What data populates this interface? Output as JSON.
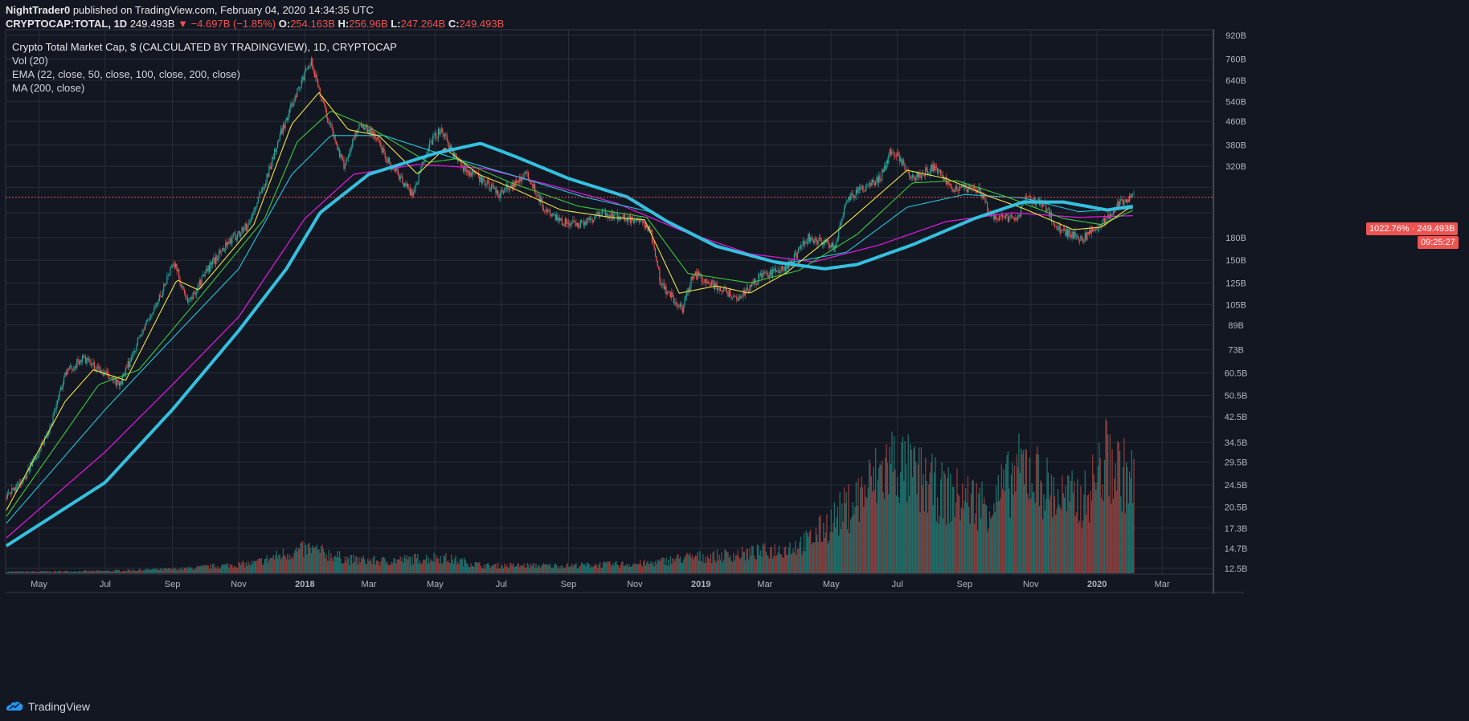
{
  "header": {
    "publisher": "NightTrader0",
    "published_text": "published on TradingView.com, February 04, 2020 14:34:35 UTC",
    "symbol": "CRYPTOCAP:TOTAL, 1D",
    "last": "249.493B",
    "change": "▼ −4.697B (−1.85%)",
    "o_label": "O:",
    "o": "254.163B",
    "h_label": "H:",
    "h": "256.96B",
    "l_label": "L:",
    "l": "247.264B",
    "c_label": "C:",
    "c": "249.493B"
  },
  "legend": {
    "title": "Crypto Total Market Cap, $ (CALCULATED BY TRADINGVIEW), 1D, CRYPTOCAP",
    "vol": "Vol (20)",
    "ema": "EMA (22, close, 50, close, 100, close, 200, close)",
    "ma": "MA (200, close)"
  },
  "tags": {
    "percent": "1022.76%",
    "price": "249.493B",
    "countdown": "09:25:27"
  },
  "footer": {
    "brand": "TradingView"
  },
  "colors": {
    "background": "#131722",
    "grid": "#2a2e39",
    "up": "#26a69a",
    "down": "#ef5350",
    "ema22": "#f0e442",
    "ema50": "#3ec93e",
    "ema100": "#26c6da",
    "ema200": "#d81bd8",
    "ma200": "#35c0e0"
  },
  "chart_data": {
    "type": "line",
    "y_scale": "log",
    "y_ticks": [
      "920B",
      "760B",
      "640B",
      "540B",
      "460B",
      "380B",
      "320B",
      "",
      "",
      "180B",
      "150B",
      "125B",
      "105B",
      "89B",
      "73B",
      "60.5B",
      "50.5B",
      "42.5B",
      "34.5B",
      "29.5B",
      "24.5B",
      "20.5B",
      "17.3B",
      "14.7B",
      "12.5B"
    ],
    "y_tick_values": [
      920,
      760,
      640,
      540,
      460,
      380,
      320,
      270,
      220,
      180,
      150,
      125,
      105,
      89,
      73,
      60.5,
      50.5,
      42.5,
      34.5,
      29.5,
      24.5,
      20.5,
      17.3,
      14.7,
      12.5
    ],
    "x_ticks": [
      "May",
      "Jul",
      "Sep",
      "Nov",
      "2018",
      "Mar",
      "May",
      "Jul",
      "Sep",
      "Nov",
      "2019",
      "Mar",
      "May",
      "Jul",
      "Sep",
      "Nov",
      "2020",
      "Mar"
    ],
    "x_tick_dates": [
      "2017-05-01",
      "2017-07-01",
      "2017-09-01",
      "2017-11-01",
      "2018-01-01",
      "2018-03-01",
      "2018-05-01",
      "2018-07-01",
      "2018-09-01",
      "2018-11-01",
      "2019-01-01",
      "2019-03-01",
      "2019-05-01",
      "2019-07-01",
      "2019-09-01",
      "2019-11-01",
      "2020-01-01",
      "2020-03-01"
    ],
    "price_points": [
      [
        "2017-04-01",
        22
      ],
      [
        "2017-04-20",
        27
      ],
      [
        "2017-05-10",
        38
      ],
      [
        "2017-05-25",
        60
      ],
      [
        "2017-06-10",
        68
      ],
      [
        "2017-06-25",
        62
      ],
      [
        "2017-07-15",
        55
      ],
      [
        "2017-08-01",
        80
      ],
      [
        "2017-08-20",
        110
      ],
      [
        "2017-09-02",
        150
      ],
      [
        "2017-09-15",
        105
      ],
      [
        "2017-10-01",
        135
      ],
      [
        "2017-10-20",
        170
      ],
      [
        "2017-11-10",
        200
      ],
      [
        "2017-11-25",
        280
      ],
      [
        "2017-12-10",
        420
      ],
      [
        "2017-12-25",
        590
      ],
      [
        "2018-01-07",
        740
      ],
      [
        "2018-01-20",
        500
      ],
      [
        "2018-02-06",
        320
      ],
      [
        "2018-02-20",
        450
      ],
      [
        "2018-03-05",
        420
      ],
      [
        "2018-03-20",
        330
      ],
      [
        "2018-04-10",
        255
      ],
      [
        "2018-04-25",
        380
      ],
      [
        "2018-05-06",
        430
      ],
      [
        "2018-05-25",
        320
      ],
      [
        "2018-06-12",
        290
      ],
      [
        "2018-06-28",
        255
      ],
      [
        "2018-07-25",
        300
      ],
      [
        "2018-08-12",
        220
      ],
      [
        "2018-08-25",
        205
      ],
      [
        "2018-09-10",
        200
      ],
      [
        "2018-10-01",
        218
      ],
      [
        "2018-10-25",
        210
      ],
      [
        "2018-11-15",
        195
      ],
      [
        "2018-11-25",
        125
      ],
      [
        "2018-12-15",
        100
      ],
      [
        "2018-12-25",
        135
      ],
      [
        "2019-01-10",
        125
      ],
      [
        "2019-02-05",
        110
      ],
      [
        "2019-02-25",
        132
      ],
      [
        "2019-03-20",
        140
      ],
      [
        "2019-04-10",
        180
      ],
      [
        "2019-05-05",
        168
      ],
      [
        "2019-05-15",
        245
      ],
      [
        "2019-05-30",
        268
      ],
      [
        "2019-06-15",
        290
      ],
      [
        "2019-06-26",
        370
      ],
      [
        "2019-07-15",
        290
      ],
      [
        "2019-08-05",
        320
      ],
      [
        "2019-08-20",
        270
      ],
      [
        "2019-09-15",
        265
      ],
      [
        "2019-09-25",
        215
      ],
      [
        "2019-10-20",
        210
      ],
      [
        "2019-10-28",
        250
      ],
      [
        "2019-11-15",
        230
      ],
      [
        "2019-11-25",
        195
      ],
      [
        "2019-12-18",
        178
      ],
      [
        "2020-01-05",
        200
      ],
      [
        "2020-01-20",
        235
      ],
      [
        "2020-02-04",
        249.493
      ]
    ],
    "ema22_points": [
      [
        "2017-04-01",
        20
      ],
      [
        "2017-05-25",
        48
      ],
      [
        "2017-06-20",
        62
      ],
      [
        "2017-07-20",
        57
      ],
      [
        "2017-09-05",
        128
      ],
      [
        "2017-09-25",
        118
      ],
      [
        "2017-11-15",
        200
      ],
      [
        "2017-12-20",
        450
      ],
      [
        "2018-01-14",
        580
      ],
      [
        "2018-02-10",
        430
      ],
      [
        "2018-03-10",
        410
      ],
      [
        "2018-04-15",
        300
      ],
      [
        "2018-05-10",
        370
      ],
      [
        "2018-06-10",
        300
      ],
      [
        "2018-07-10",
        270
      ],
      [
        "2018-08-25",
        225
      ],
      [
        "2018-10-10",
        212
      ],
      [
        "2018-11-10",
        208
      ],
      [
        "2018-12-12",
        115
      ],
      [
        "2019-01-15",
        122
      ],
      [
        "2019-02-15",
        115
      ],
      [
        "2019-03-20",
        135
      ],
      [
        "2019-04-20",
        168
      ],
      [
        "2019-05-20",
        210
      ],
      [
        "2019-07-10",
        310
      ],
      [
        "2019-08-15",
        290
      ],
      [
        "2019-09-25",
        250
      ],
      [
        "2019-10-25",
        228
      ],
      [
        "2019-12-10",
        192
      ],
      [
        "2020-01-05",
        196
      ],
      [
        "2020-02-04",
        235
      ]
    ],
    "ema50_points": [
      [
        "2017-04-01",
        19
      ],
      [
        "2017-06-25",
        55
      ],
      [
        "2017-08-01",
        62
      ],
      [
        "2017-09-25",
        110
      ],
      [
        "2017-11-25",
        210
      ],
      [
        "2017-12-25",
        390
      ],
      [
        "2018-01-25",
        500
      ],
      [
        "2018-03-01",
        440
      ],
      [
        "2018-04-25",
        330
      ],
      [
        "2018-05-20",
        340
      ],
      [
        "2018-07-10",
        280
      ],
      [
        "2018-09-10",
        232
      ],
      [
        "2018-11-12",
        212
      ],
      [
        "2018-12-20",
        135
      ],
      [
        "2019-02-15",
        125
      ],
      [
        "2019-04-01",
        138
      ],
      [
        "2019-05-25",
        185
      ],
      [
        "2019-07-15",
        280
      ],
      [
        "2019-08-25",
        285
      ],
      [
        "2019-10-10",
        250
      ],
      [
        "2019-12-01",
        210
      ],
      [
        "2020-01-05",
        200
      ],
      [
        "2020-02-04",
        225
      ]
    ],
    "ema100_points": [
      [
        "2017-04-01",
        18
      ],
      [
        "2017-07-01",
        45
      ],
      [
        "2017-09-01",
        80
      ],
      [
        "2017-11-01",
        140
      ],
      [
        "2017-12-20",
        300
      ],
      [
        "2018-01-25",
        410
      ],
      [
        "2018-03-15",
        410
      ],
      [
        "2018-05-15",
        345
      ],
      [
        "2018-07-15",
        295
      ],
      [
        "2018-09-15",
        250
      ],
      [
        "2018-11-15",
        222
      ],
      [
        "2019-01-15",
        170
      ],
      [
        "2019-03-15",
        145
      ],
      [
        "2019-05-15",
        160
      ],
      [
        "2019-07-10",
        230
      ],
      [
        "2019-09-01",
        255
      ],
      [
        "2019-10-25",
        248
      ],
      [
        "2019-12-15",
        222
      ],
      [
        "2020-02-04",
        228
      ]
    ],
    "ema200_points": [
      [
        "2017-04-01",
        16
      ],
      [
        "2017-07-01",
        32
      ],
      [
        "2017-09-01",
        55
      ],
      [
        "2017-11-01",
        95
      ],
      [
        "2018-01-01",
        210
      ],
      [
        "2018-02-15",
        300
      ],
      [
        "2018-04-15",
        325
      ],
      [
        "2018-06-15",
        315
      ],
      [
        "2018-08-15",
        275
      ],
      [
        "2018-10-15",
        238
      ],
      [
        "2018-12-15",
        190
      ],
      [
        "2019-02-15",
        158
      ],
      [
        "2019-04-15",
        148
      ],
      [
        "2019-06-15",
        170
      ],
      [
        "2019-08-15",
        205
      ],
      [
        "2019-10-15",
        220
      ],
      [
        "2019-12-15",
        212
      ],
      [
        "2020-02-04",
        215
      ]
    ],
    "ma200_points": [
      [
        "2017-04-01",
        15
      ],
      [
        "2017-07-01",
        25
      ],
      [
        "2017-09-01",
        45
      ],
      [
        "2017-11-01",
        85
      ],
      [
        "2017-12-15",
        140
      ],
      [
        "2018-01-15",
        220
      ],
      [
        "2018-03-01",
        300
      ],
      [
        "2018-05-01",
        355
      ],
      [
        "2018-06-12",
        385
      ],
      [
        "2018-07-15",
        345
      ],
      [
        "2018-09-01",
        290
      ],
      [
        "2018-10-25",
        250
      ],
      [
        "2018-12-01",
        205
      ],
      [
        "2019-01-15",
        168
      ],
      [
        "2019-03-10",
        148
      ],
      [
        "2019-04-25",
        140
      ],
      [
        "2019-05-25",
        145
      ],
      [
        "2019-07-15",
        170
      ],
      [
        "2019-09-10",
        210
      ],
      [
        "2019-10-25",
        240
      ],
      [
        "2019-12-01",
        240
      ],
      [
        "2020-01-10",
        225
      ],
      [
        "2020-02-04",
        232
      ]
    ],
    "volume_points": [
      [
        "2017-04-01",
        0.2
      ],
      [
        "2017-07-01",
        0.3
      ],
      [
        "2017-09-10",
        0.6
      ],
      [
        "2017-11-15",
        1.3
      ],
      [
        "2017-12-15",
        2.6
      ],
      [
        "2018-01-05",
        3.2
      ],
      [
        "2018-02-10",
        1.8
      ],
      [
        "2018-03-15",
        1.6
      ],
      [
        "2018-05-05",
        2.1
      ],
      [
        "2018-06-15",
        1.0
      ],
      [
        "2018-09-01",
        1.0
      ],
      [
        "2018-11-15",
        1.3
      ],
      [
        "2018-12-15",
        2.0
      ],
      [
        "2019-02-01",
        2.4
      ],
      [
        "2019-03-20",
        3.2
      ],
      [
        "2019-04-10",
        4.2
      ],
      [
        "2019-05-20",
        9.0
      ],
      [
        "2019-06-26",
        14.5
      ],
      [
        "2019-08-10",
        10.5
      ],
      [
        "2019-09-25",
        9.0
      ],
      [
        "2019-10-26",
        14.0
      ],
      [
        "2019-11-25",
        10.0
      ],
      [
        "2019-12-20",
        9.5
      ],
      [
        "2020-01-10",
        15.0
      ],
      [
        "2020-01-20",
        13.5
      ],
      [
        "2020-02-04",
        12.0
      ]
    ]
  }
}
